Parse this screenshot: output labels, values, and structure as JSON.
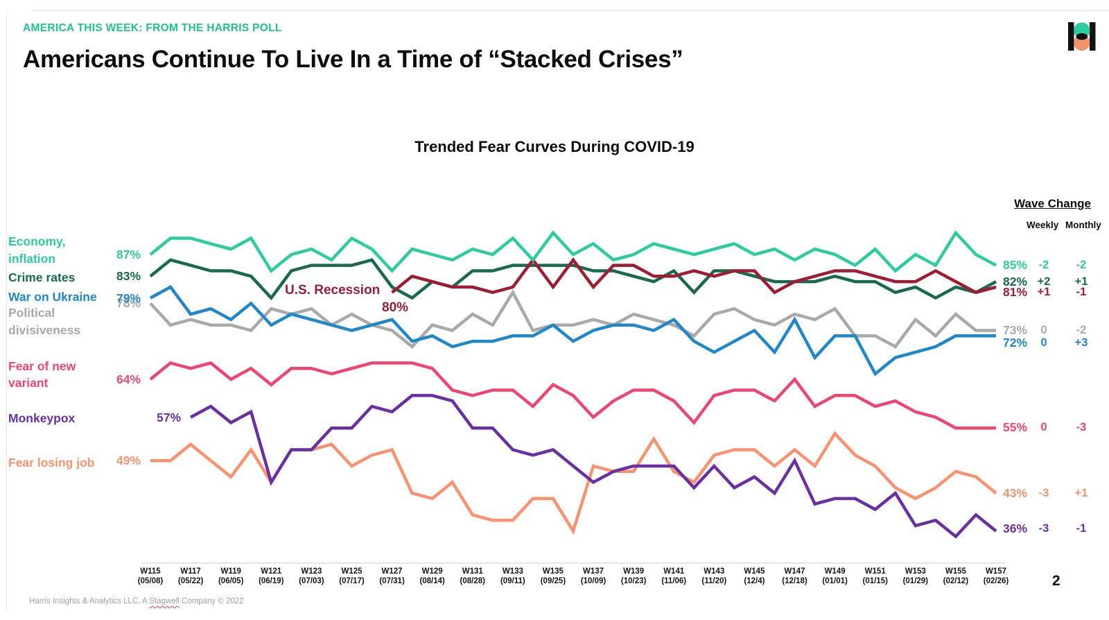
{
  "header": {
    "eyebrow": "AMERICA THIS WEEK: FROM THE HARRIS POLL",
    "title": "Americans Continue To Live In a Time of “Stacked Crises”"
  },
  "logo": {
    "bar_color": "#111111",
    "top_circle_color": "#2bcd9e",
    "bottom_circle_color": "#f0926a"
  },
  "wave_change": {
    "title": "Wave Change",
    "col_weekly": "Weekly",
    "col_monthly": "Monthly"
  },
  "footer": {
    "pre": "Harris Insights & Analytics LLC, A ",
    "highlight": "Stagwell",
    "post": " Company © 2022"
  },
  "page_number": "2",
  "chart_data": {
    "type": "line",
    "title": "Trended Fear Curves During COVID-19",
    "x_start_week": 115,
    "x_end_week": 157,
    "ylim": [
      30,
      95
    ],
    "grid": false,
    "legend_position": "left-inline",
    "x_ticks": [
      {
        "week": "W115",
        "date": "(05/08)"
      },
      {
        "week": "W117",
        "date": "(05/22)"
      },
      {
        "week": "W119",
        "date": "(06/05)"
      },
      {
        "week": "W121",
        "date": "(06/19)"
      },
      {
        "week": "W123",
        "date": "(07/03)"
      },
      {
        "week": "W125",
        "date": "(07/17)"
      },
      {
        "week": "W127",
        "date": "(07/31)"
      },
      {
        "week": "W129",
        "date": "(08/14)"
      },
      {
        "week": "W131",
        "date": "(08/28)"
      },
      {
        "week": "W133",
        "date": "(09/11)"
      },
      {
        "week": "W135",
        "date": "(09/25)"
      },
      {
        "week": "W137",
        "date": "(10/09)"
      },
      {
        "week": "W139",
        "date": "(10/23)"
      },
      {
        "week": "W141",
        "date": "(11/06)"
      },
      {
        "week": "W143",
        "date": "(11/20)"
      },
      {
        "week": "W145",
        "date": "(12/4)"
      },
      {
        "week": "W147",
        "date": "(12/18)"
      },
      {
        "week": "W149",
        "date": "(01/01)"
      },
      {
        "week": "W151",
        "date": "(01/15)"
      },
      {
        "week": "W153",
        "date": "(01/29)"
      },
      {
        "week": "W155",
        "date": "(02/12)"
      },
      {
        "week": "W157",
        "date": "(02/26)"
      }
    ],
    "series": [
      {
        "id": "political",
        "name": "Political divisiveness",
        "label_lines": [
          "Political",
          "divisiveness"
        ],
        "color": "#a9a9a9",
        "start_week": 115,
        "start_label": "78%",
        "end_label": "73%",
        "weekly_change": "0",
        "monthly_change": "-2",
        "values": [
          78,
          74,
          75,
          74,
          74,
          73,
          77,
          76,
          77,
          74,
          76,
          74,
          73,
          70,
          74,
          73,
          76,
          74,
          80,
          73,
          74,
          74,
          75,
          74,
          76,
          75,
          74,
          72,
          76,
          77,
          75,
          74,
          76,
          75,
          77,
          72,
          72,
          70,
          75,
          72,
          76,
          73,
          73
        ]
      },
      {
        "id": "ukraine",
        "name": "War on Ukraine",
        "label_lines": [
          "War on Ukraine"
        ],
        "color": "#1f88c9",
        "start_week": 115,
        "start_label": "79%",
        "end_label": "72%",
        "weekly_change": "0",
        "monthly_change": "+3",
        "values": [
          79,
          81,
          76,
          77,
          75,
          78,
          74,
          76,
          75,
          74,
          73,
          74,
          75,
          71,
          72,
          70,
          71,
          71,
          72,
          72,
          74,
          71,
          73,
          74,
          74,
          73,
          75,
          71,
          69,
          71,
          73,
          69,
          75,
          68,
          72,
          72,
          65,
          68,
          69,
          70,
          72,
          72,
          72
        ]
      },
      {
        "id": "crime",
        "name": "Crime rates",
        "label_lines": [
          "Crime rates"
        ],
        "color": "#176a4e",
        "start_week": 115,
        "start_label": "83%",
        "end_label": "82%",
        "weekly_change": "+2",
        "monthly_change": "+1",
        "values": [
          83,
          86,
          85,
          84,
          84,
          83,
          79,
          84,
          85,
          85,
          85,
          86,
          81,
          79,
          82,
          81,
          84,
          84,
          85,
          85,
          85,
          85,
          84,
          84,
          83,
          82,
          84,
          80,
          84,
          84,
          83,
          82,
          82,
          82,
          83,
          82,
          82,
          80,
          81,
          79,
          81,
          80,
          82
        ]
      },
      {
        "id": "recession",
        "name": "U.S. Recession",
        "label_lines": [],
        "color": "#a01c33",
        "start_week": 127,
        "start_label": "80%",
        "end_label": "81%",
        "weekly_change": "+1",
        "monthly_change": "-1",
        "annotation": {
          "text": "U.S. Recession",
          "pct": "80%"
        },
        "values": [
          80,
          83,
          82,
          81,
          81,
          80,
          81,
          86,
          81,
          86,
          81,
          85,
          85,
          83,
          83,
          84,
          83,
          84,
          84,
          80,
          82,
          83,
          84,
          84,
          83,
          82,
          82,
          84,
          82,
          80,
          81
        ]
      },
      {
        "id": "economy",
        "name": "Economy, inflation",
        "label_lines": [
          "Economy,",
          "inflation"
        ],
        "color": "#2bcd9e",
        "start_week": 115,
        "start_label": "87%",
        "end_label": "85%",
        "weekly_change": "-2",
        "monthly_change": "-2",
        "values": [
          87,
          90,
          90,
          89,
          88,
          90,
          84,
          87,
          88,
          86,
          90,
          88,
          84,
          88,
          87,
          86,
          88,
          87,
          90,
          86,
          91,
          87,
          89,
          86,
          87,
          89,
          88,
          87,
          88,
          89,
          87,
          88,
          86,
          88,
          87,
          85,
          88,
          84,
          87,
          85,
          91,
          87,
          85
        ]
      },
      {
        "id": "variant",
        "name": "Fear of new variant",
        "label_lines": [
          "Fear of new",
          "variant"
        ],
        "color": "#ef4571",
        "start_week": 115,
        "start_label": "64%",
        "end_label": "55%",
        "weekly_change": "0",
        "monthly_change": "-3",
        "values": [
          64,
          67,
          66,
          67,
          64,
          66,
          63,
          66,
          66,
          65,
          66,
          67,
          67,
          67,
          66,
          62,
          61,
          62,
          62,
          59,
          63,
          61,
          57,
          60,
          62,
          62,
          60,
          56,
          61,
          62,
          62,
          60,
          64,
          59,
          61,
          61,
          59,
          60,
          58,
          57,
          55,
          55,
          55
        ]
      },
      {
        "id": "job",
        "name": "Fear losing job",
        "label_lines": [
          "Fear losing job"
        ],
        "color": "#fa9270",
        "start_week": 115,
        "start_label": "49%",
        "end_label": "43%",
        "weekly_change": "-3",
        "monthly_change": "+1",
        "values": [
          49,
          49,
          52,
          49,
          46,
          51,
          45,
          51,
          51,
          52,
          48,
          50,
          51,
          43,
          42,
          45,
          39,
          38,
          38,
          42,
          42,
          36,
          48,
          47,
          47,
          53,
          47,
          45,
          50,
          51,
          51,
          48,
          51,
          48,
          54,
          50,
          48,
          44,
          42,
          44,
          47,
          46,
          43
        ]
      },
      {
        "id": "monkeypox",
        "name": "Monkeypox",
        "label_lines": [
          "Monkeypox"
        ],
        "color": "#6930a3",
        "start_week": 117,
        "start_label": "57%",
        "end_label": "36%",
        "weekly_change": "-3",
        "monthly_change": "-1",
        "values": [
          57,
          59,
          56,
          58,
          45,
          51,
          51,
          55,
          55,
          59,
          58,
          61,
          61,
          60,
          55,
          55,
          51,
          50,
          51,
          48,
          45,
          47,
          48,
          48,
          48,
          44,
          48,
          44,
          46,
          43,
          49,
          41,
          42,
          42,
          40,
          43,
          37,
          38,
          35,
          39,
          36
        ]
      }
    ]
  }
}
